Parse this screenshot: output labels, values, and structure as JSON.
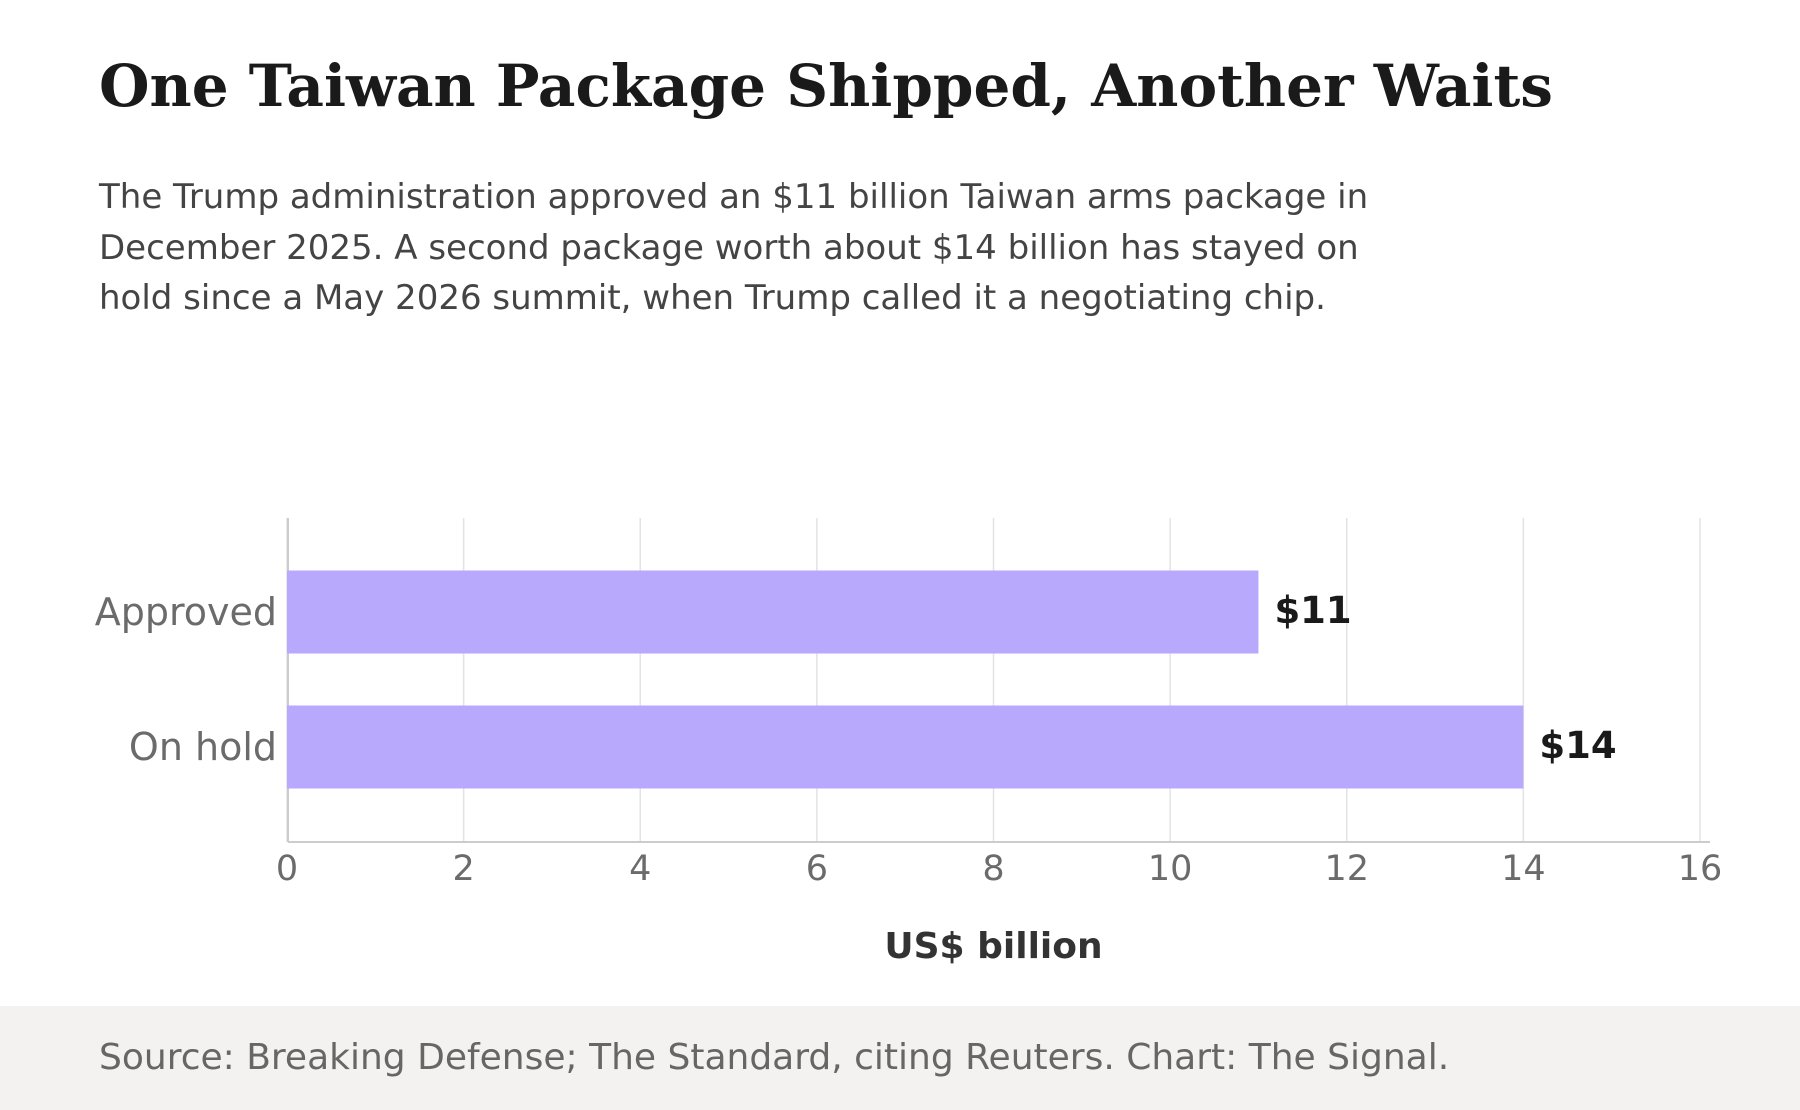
{
  "header": {
    "title": "One Taiwan Package Shipped, Another Waits",
    "subtitle": "The Trump administration approved an $11 billion Taiwan arms package in December 2025. A second package worth about $14 billion has stayed on hold since a May 2026 summit, when Trump called it a negotiating chip."
  },
  "footer": {
    "source": "Source: Breaking Defense; The Standard, citing Reuters. Chart: The Signal."
  },
  "colors": {
    "bar": "#b8a9fc",
    "grid": "#e3e3e3",
    "axis": "#cccccc",
    "tick_text": "#6b6b6b",
    "label_text": "#1a1a1a",
    "xlabel_text": "#333333"
  },
  "chart_data": {
    "type": "bar",
    "orientation": "horizontal",
    "categories": [
      "Approved",
      "On hold"
    ],
    "values": [
      11,
      14
    ],
    "value_labels": [
      "$11",
      "$14"
    ],
    "xlabel": "US$ billion",
    "ylabel": "",
    "xlim": [
      0,
      16
    ],
    "xticks": [
      "0",
      "2",
      "4",
      "6",
      "8",
      "10",
      "12",
      "14",
      "16"
    ],
    "grid": true
  }
}
